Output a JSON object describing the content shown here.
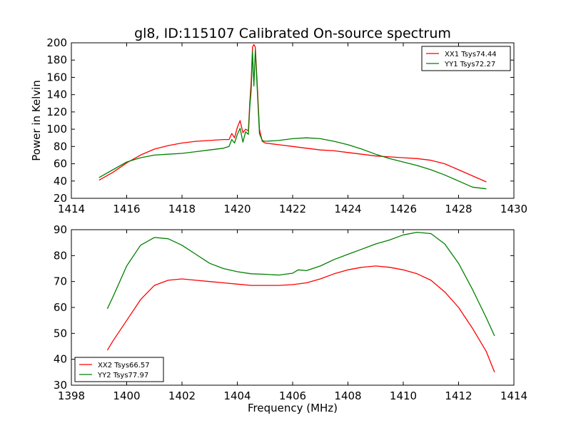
{
  "title": "gl8, ID:115107 Calibrated On-source spectrum",
  "colors": {
    "red": "#ff0000",
    "green": "#008000",
    "axis": "#000000",
    "background": "#ffffff"
  },
  "chart_data": [
    {
      "type": "line",
      "title": "gl8, ID:115107 Calibrated On-source spectrum",
      "xlabel": "",
      "ylabel": "Power in Kelvin",
      "xlim": [
        1414,
        1430
      ],
      "ylim": [
        20,
        200
      ],
      "xticks": [
        "1414",
        "1416",
        "1418",
        "1420",
        "1422",
        "1424",
        "1426",
        "1428",
        "1430"
      ],
      "yticks": [
        "20",
        "40",
        "60",
        "80",
        "100",
        "120",
        "140",
        "160",
        "180",
        "200"
      ],
      "legend": "top-right",
      "series": [
        {
          "name": "XX1 Tsys74.44",
          "color": "#ff0000",
          "x": [
            1415,
            1415.5,
            1416,
            1416.5,
            1417,
            1417.5,
            1418,
            1418.5,
            1419,
            1419.5,
            1419.7,
            1419.8,
            1419.9,
            1420.0,
            1420.1,
            1420.2,
            1420.3,
            1420.4,
            1420.45,
            1420.5,
            1420.55,
            1420.6,
            1420.65,
            1420.7,
            1420.8,
            1420.9,
            1421,
            1421.5,
            1422,
            1422.5,
            1423,
            1423.5,
            1424,
            1424.5,
            1425,
            1425.5,
            1426,
            1426.5,
            1427,
            1427.5,
            1428,
            1428.5,
            1429
          ],
          "y": [
            41,
            50,
            61,
            70,
            77,
            81,
            84,
            86,
            87,
            88,
            88,
            95,
            90,
            102,
            110,
            96,
            100,
            98,
            130,
            155,
            195,
            198,
            195,
            165,
            100,
            86,
            84,
            82,
            80,
            78,
            76,
            75,
            73,
            71,
            69,
            68,
            67,
            66,
            64,
            60,
            53,
            46,
            39
          ]
        },
        {
          "name": "YY1 Tsys72.27",
          "color": "#008000",
          "x": [
            1415,
            1415.5,
            1416,
            1416.5,
            1417,
            1417.5,
            1418,
            1418.5,
            1419,
            1419.5,
            1419.7,
            1419.8,
            1419.9,
            1420.0,
            1420.1,
            1420.2,
            1420.3,
            1420.4,
            1420.45,
            1420.5,
            1420.55,
            1420.6,
            1420.65,
            1420.7,
            1420.8,
            1420.9,
            1421,
            1421.5,
            1422,
            1422.5,
            1423,
            1423.5,
            1424,
            1424.5,
            1425,
            1425.5,
            1426,
            1426.5,
            1427,
            1427.5,
            1428,
            1428.5,
            1429
          ],
          "y": [
            44,
            53,
            62,
            67,
            70,
            71,
            72,
            74,
            76,
            78,
            80,
            88,
            84,
            94,
            101,
            85,
            97,
            94,
            125,
            145,
            190,
            150,
            192,
            160,
            95,
            87,
            86,
            87,
            89,
            90,
            89,
            86,
            82,
            77,
            71,
            66,
            62,
            58,
            53,
            47,
            40,
            33,
            31
          ]
        }
      ]
    },
    {
      "type": "line",
      "title": "",
      "xlabel": "Frequency (MHz)",
      "ylabel": "",
      "xlim": [
        1398,
        1414
      ],
      "ylim": [
        30,
        90
      ],
      "xticks": [
        "1398",
        "1400",
        "1402",
        "1404",
        "1406",
        "1408",
        "1410",
        "1412",
        "1414"
      ],
      "yticks": [
        "30",
        "40",
        "50",
        "60",
        "70",
        "80",
        "90"
      ],
      "legend": "bottom-left",
      "series": [
        {
          "name": "XX2 Tsys66.57",
          "color": "#ff0000",
          "x": [
            1399.3,
            1399.5,
            1400,
            1400.5,
            1401,
            1401.5,
            1402,
            1402.5,
            1403,
            1403.5,
            1404,
            1404.5,
            1405,
            1405.5,
            1406,
            1406.5,
            1407,
            1407.5,
            1408,
            1408.5,
            1409,
            1409.5,
            1410,
            1410.5,
            1411,
            1411.5,
            1412,
            1412.5,
            1413,
            1413.3
          ],
          "y": [
            43.5,
            47,
            55,
            63,
            68.5,
            70.5,
            71,
            70.5,
            70,
            69.5,
            69,
            68.5,
            68.5,
            68.5,
            68.8,
            69.5,
            71,
            73,
            74.5,
            75.5,
            76,
            75.5,
            74.5,
            73,
            70.5,
            66,
            60,
            52,
            43,
            35
          ]
        },
        {
          "name": "YY2 Tsys77.97",
          "color": "#008000",
          "x": [
            1399.3,
            1399.5,
            1400,
            1400.5,
            1401,
            1401.5,
            1402,
            1402.5,
            1403,
            1403.5,
            1404,
            1404.5,
            1405,
            1405.5,
            1406,
            1406.2,
            1406.5,
            1407,
            1407.5,
            1408,
            1408.5,
            1409,
            1409.5,
            1410,
            1410.5,
            1411,
            1411.5,
            1412,
            1412.5,
            1413,
            1413.3
          ],
          "y": [
            59.5,
            64,
            76,
            84,
            87,
            86.5,
            84,
            80.5,
            77,
            75,
            73.8,
            73,
            72.8,
            72.5,
            73.2,
            74.5,
            74.2,
            76,
            78.5,
            80.5,
            82.5,
            84.5,
            86,
            88,
            89,
            88.5,
            84.5,
            77,
            67,
            56,
            49
          ]
        }
      ]
    }
  ]
}
